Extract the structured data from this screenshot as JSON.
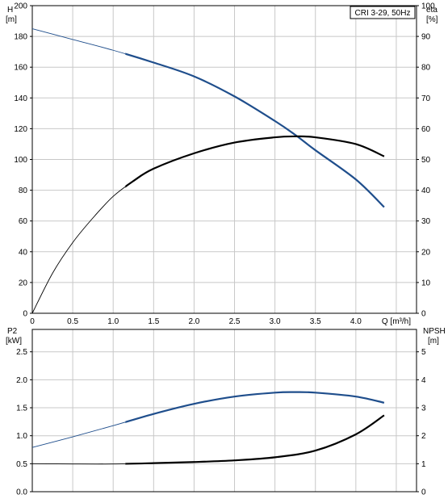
{
  "chart_data": [
    {
      "type": "line",
      "box_label": "CRI 3-29, 50Hz",
      "x_axis": {
        "label": "Q [m³/h]",
        "ticks": [
          "0",
          "0.5",
          "1.0",
          "1.5",
          "2.0",
          "2.5",
          "3.0",
          "3.5",
          "4.0"
        ],
        "range": [
          0,
          4.75
        ]
      },
      "y_left": {
        "label_line1": "H",
        "label_line2": "[m]",
        "ticks": [
          "0",
          "20",
          "40",
          "60",
          "80",
          "100",
          "120",
          "140",
          "160",
          "180",
          "200"
        ],
        "range": [
          0,
          200
        ]
      },
      "y_right": {
        "label_line1": "eta",
        "label_line2": "[%]",
        "ticks": [
          "0",
          "10",
          "20",
          "30",
          "40",
          "50",
          "60",
          "70",
          "80",
          "90",
          "100"
        ],
        "range": [
          0,
          100
        ]
      },
      "grid": true,
      "series": [
        {
          "axis": "left",
          "color": "#1f4e8c",
          "thin_until_x": 1.15,
          "points": [
            [
              0,
              185
            ],
            [
              0.5,
              178
            ],
            [
              1.0,
              171
            ],
            [
              1.5,
              163
            ],
            [
              2.0,
              154
            ],
            [
              2.5,
              141
            ],
            [
              3.0,
              125
            ],
            [
              3.25,
              116
            ],
            [
              3.5,
              106
            ],
            [
              4.0,
              87
            ],
            [
              4.35,
              69
            ]
          ]
        },
        {
          "axis": "right",
          "color": "#000000",
          "thin_until_x": 1.15,
          "points": [
            [
              0,
              0
            ],
            [
              0.25,
              13
            ],
            [
              0.5,
              23
            ],
            [
              0.75,
              31
            ],
            [
              1.0,
              38
            ],
            [
              1.25,
              43
            ],
            [
              1.5,
              47
            ],
            [
              2.0,
              52
            ],
            [
              2.5,
              55.5
            ],
            [
              3.0,
              57.2
            ],
            [
              3.25,
              57.5
            ],
            [
              3.5,
              57.2
            ],
            [
              4.0,
              55
            ],
            [
              4.35,
              51
            ]
          ]
        }
      ]
    },
    {
      "type": "line",
      "x_axis": {
        "range": [
          0,
          4.75
        ]
      },
      "y_left": {
        "label_line1": "P2",
        "label_line2": "[kW]",
        "ticks": [
          "0.0",
          "0.5",
          "1.0",
          "1.5",
          "2.0",
          "2.5"
        ],
        "range": [
          0,
          2.9
        ]
      },
      "y_right": {
        "label_line1": "NPSH",
        "label_line2": "[m]",
        "ticks": [
          "0",
          "1",
          "2",
          "3",
          "4",
          "5"
        ],
        "range": [
          0,
          5.8
        ]
      },
      "grid": true,
      "series": [
        {
          "axis": "left",
          "color": "#1f4e8c",
          "thin_until_x": 1.15,
          "points": [
            [
              0,
              0.79
            ],
            [
              0.5,
              0.98
            ],
            [
              1.0,
              1.18
            ],
            [
              1.5,
              1.39
            ],
            [
              2.0,
              1.57
            ],
            [
              2.5,
              1.7
            ],
            [
              3.0,
              1.77
            ],
            [
              3.25,
              1.78
            ],
            [
              3.5,
              1.77
            ],
            [
              4.0,
              1.7
            ],
            [
              4.35,
              1.59
            ]
          ]
        },
        {
          "axis": "right",
          "color": "#000000",
          "thin_until_x": 1.15,
          "points": [
            [
              0,
              1.0
            ],
            [
              0.5,
              0.99
            ],
            [
              1.0,
              0.99
            ],
            [
              1.5,
              1.02
            ],
            [
              2.0,
              1.06
            ],
            [
              2.5,
              1.12
            ],
            [
              3.0,
              1.23
            ],
            [
              3.5,
              1.47
            ],
            [
              4.0,
              2.05
            ],
            [
              4.35,
              2.73
            ]
          ]
        }
      ]
    }
  ]
}
